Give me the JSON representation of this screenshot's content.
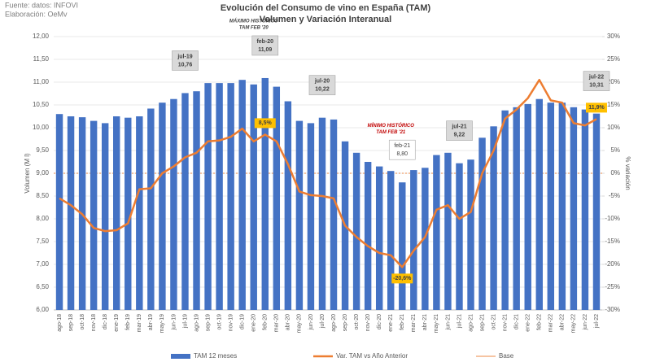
{
  "chart_data": {
    "type": "bar_line",
    "source": "Fuente: datos: INFOVI",
    "credit": "Elaboración: OeMv",
    "title": "Evolución del Consumo de vino en España (TAM)",
    "subtitle": "Volumen y Variación Interanual",
    "y_label": "Volumen (M l)",
    "y2_label": "% variación",
    "categories": [
      "ago-18",
      "sep-18",
      "oct-18",
      "nov-18",
      "dic-18",
      "ene-19",
      "feb-19",
      "mar-19",
      "abr-19",
      "may-19",
      "jun-19",
      "jul-19",
      "ago-19",
      "sep-19",
      "oct-19",
      "nov-19",
      "dic-19",
      "ene-20",
      "feb-20",
      "mar-20",
      "abr-20",
      "may-20",
      "jun-20",
      "jul-20",
      "ago-20",
      "sep-20",
      "oct-20",
      "nov-20",
      "dic-20",
      "ene-21",
      "feb-21",
      "mar-21",
      "abr-21",
      "may-21",
      "jun-21",
      "jul-21",
      "ago-21",
      "sep-21",
      "oct-21",
      "nov-21",
      "dic-21",
      "ene-22",
      "feb-22",
      "mar-22",
      "abr-22",
      "may-22",
      "jun-22",
      "jul-22"
    ],
    "series": [
      {
        "name": "TAM 12 meses",
        "color": "#4472c4",
        "kind": "bar",
        "values": [
          10.3,
          10.25,
          10.23,
          10.15,
          10.1,
          10.25,
          10.22,
          10.25,
          10.42,
          10.55,
          10.63,
          10.76,
          10.8,
          10.98,
          10.98,
          10.98,
          11.05,
          10.95,
          11.09,
          10.9,
          10.58,
          10.15,
          10.1,
          10.22,
          10.18,
          9.7,
          9.45,
          9.25,
          9.15,
          9.05,
          8.8,
          9.07,
          9.12,
          9.4,
          9.45,
          9.22,
          9.3,
          9.78,
          10.03,
          10.38,
          10.45,
          10.52,
          10.63,
          10.55,
          10.55,
          10.45,
          10.4,
          10.31
        ],
        "value_labels": [
          null,
          null,
          null,
          null,
          null,
          null,
          null,
          null,
          null,
          null,
          null,
          "10,76",
          null,
          null,
          null,
          null,
          null,
          null,
          "11,09",
          null,
          null,
          null,
          null,
          "10,22",
          null,
          null,
          null,
          null,
          null,
          null,
          "8,80",
          null,
          null,
          null,
          null,
          "9,22",
          null,
          null,
          null,
          null,
          null,
          null,
          null,
          null,
          null,
          null,
          null,
          "10,31"
        ]
      },
      {
        "name": "Var. TAM vs Año Anterior",
        "color": "#ed7d31",
        "kind": "line",
        "axis": "y2",
        "values": [
          -5.5,
          -7,
          -9,
          -12,
          -12.7,
          -12.5,
          -11,
          -3.5,
          -3.3,
          0,
          1.5,
          3.5,
          4.5,
          7,
          7.2,
          8,
          9.8,
          7,
          8.5,
          7,
          2,
          -4,
          -4.8,
          -5,
          -5.5,
          -11.5,
          -14,
          -16,
          -17.5,
          -18,
          -20.6,
          -17,
          -14,
          -8,
          -7,
          -10,
          -8.5,
          0,
          5,
          12,
          14,
          16.5,
          20.5,
          16,
          15.5,
          11,
          10.5,
          11.9
        ],
        "value_labels": [
          null,
          null,
          null,
          null,
          null,
          null,
          null,
          null,
          null,
          null,
          null,
          null,
          null,
          null,
          null,
          null,
          null,
          null,
          "8,5%",
          null,
          null,
          null,
          null,
          null,
          null,
          null,
          null,
          null,
          null,
          null,
          "-20,6%",
          null,
          null,
          null,
          null,
          null,
          null,
          null,
          null,
          null,
          null,
          null,
          null,
          null,
          null,
          null,
          null,
          "11,9%"
        ]
      }
    ],
    "reference_line": {
      "name": "Base",
      "value": 0,
      "axis": "y2",
      "color": "#f4b183"
    },
    "annotations": [
      {
        "category": "feb-20",
        "lines": [
          "MÁXIMO HISTÓRICO",
          "TAM FEB '20"
        ],
        "color": "#404040"
      },
      {
        "category": "feb-21",
        "lines": [
          "MÍNIMO HISTÓRICO",
          "TAM FEB '21"
        ],
        "color": "#c00000"
      }
    ],
    "ylim": [
      6,
      12
    ],
    "yticks": [
      {
        "value": 6,
        "label": "6,00"
      },
      {
        "value": 6.5,
        "label": "6,50"
      },
      {
        "value": 7,
        "label": "7,00"
      },
      {
        "value": 7.5,
        "label": "7,50"
      },
      {
        "value": 8,
        "label": "8,00"
      },
      {
        "value": 8.5,
        "label": "8,50"
      },
      {
        "value": 9,
        "label": "9,00"
      },
      {
        "value": 9.5,
        "label": "9,50"
      },
      {
        "value": 10,
        "label": "10,00"
      },
      {
        "value": 10.5,
        "label": "10,50"
      },
      {
        "value": 11,
        "label": "11,00"
      },
      {
        "value": 11.5,
        "label": "11,50"
      },
      {
        "value": 12,
        "label": "12,00"
      }
    ],
    "y2lim": [
      -30,
      30
    ],
    "y2ticks": [
      {
        "value": -30,
        "label": "-30%"
      },
      {
        "value": -25,
        "label": "-25%"
      },
      {
        "value": -20,
        "label": "-20%"
      },
      {
        "value": -15,
        "label": "-15%"
      },
      {
        "value": -10,
        "label": "-10%"
      },
      {
        "value": -5,
        "label": "-5%"
      },
      {
        "value": 0,
        "label": "0%"
      },
      {
        "value": 5,
        "label": "5%"
      },
      {
        "value": 10,
        "label": "10%"
      },
      {
        "value": 15,
        "label": "15%"
      },
      {
        "value": 20,
        "label": "20%"
      },
      {
        "value": 25,
        "label": "25%"
      },
      {
        "value": 30,
        "label": "30%"
      }
    ],
    "grid": true
  }
}
